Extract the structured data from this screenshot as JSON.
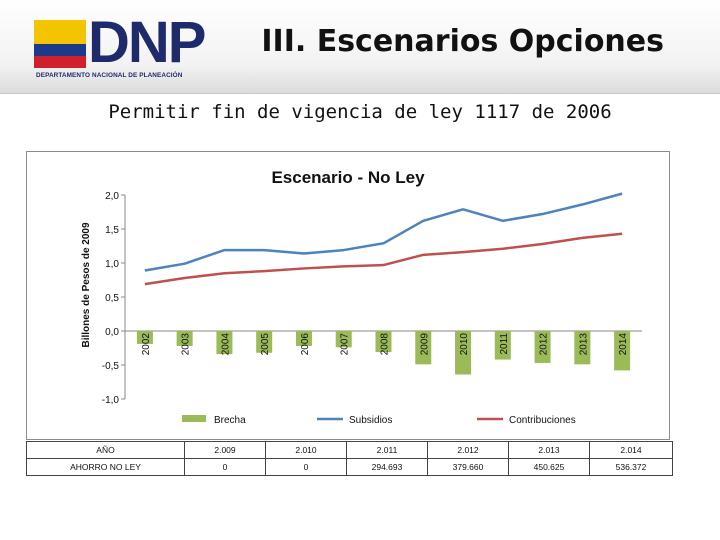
{
  "header": {
    "logo_text": "DNP",
    "logo_subtitle": "DEPARTAMENTO NACIONAL DE PLANEACIÓN",
    "title": "III. Escenarios Opciones",
    "colors": {
      "flag_yellow": "#f4c400",
      "flag_blue": "#1b3a8c",
      "flag_red": "#d0202c",
      "logo_navy": "#1f2a6b"
    }
  },
  "subtitle": "Permitir fin de vigencia de ley 1117 de 2006",
  "chart_data": {
    "type": "bar",
    "title": "Escenario - No Ley",
    "xlabel": "",
    "ylabel": "Billones de Pesos de 2009",
    "ylim": [
      -1.0,
      2.0
    ],
    "yticks": [
      "2,0",
      "1,5",
      "1,0",
      "0,5",
      "0,0",
      "-0,5",
      "-1,0"
    ],
    "ytick_values": [
      2.0,
      1.5,
      1.0,
      0.5,
      0.0,
      -0.5,
      -1.0
    ],
    "categories": [
      "2002",
      "2003",
      "2004",
      "2005",
      "2006",
      "2007",
      "2008",
      "2009",
      "2010",
      "2011",
      "2012",
      "2013",
      "2014"
    ],
    "series": [
      {
        "name": "Brecha",
        "kind": "bar",
        "color": "#9bbb59",
        "values": [
          -0.19,
          -0.22,
          -0.34,
          -0.32,
          -0.22,
          -0.24,
          -0.31,
          -0.49,
          -0.64,
          -0.42,
          -0.47,
          -0.49,
          -0.58
        ]
      },
      {
        "name": "Subsidios",
        "kind": "line",
        "color": "#4f81bd",
        "values": [
          0.89,
          0.99,
          1.19,
          1.19,
          1.14,
          1.19,
          1.29,
          1.62,
          1.79,
          1.62,
          1.72,
          1.86,
          2.02
        ]
      },
      {
        "name": "Contribuciones",
        "kind": "line",
        "color": "#c0504d",
        "values": [
          0.69,
          0.78,
          0.85,
          0.88,
          0.92,
          0.95,
          0.97,
          1.12,
          1.16,
          1.21,
          1.28,
          1.37,
          1.43
        ]
      }
    ],
    "legend": [
      "Brecha",
      "Subsidios",
      "Contribuciones"
    ],
    "legend_position": "bottom"
  },
  "table": {
    "header": [
      "AÑO",
      "2.009",
      "2.010",
      "2.011",
      "2.012",
      "2.013",
      "2.014"
    ],
    "rows": [
      [
        "AHORRO NO LEY",
        "0",
        "0",
        "294.693",
        "379.660",
        "450.625",
        "536.372"
      ]
    ]
  }
}
